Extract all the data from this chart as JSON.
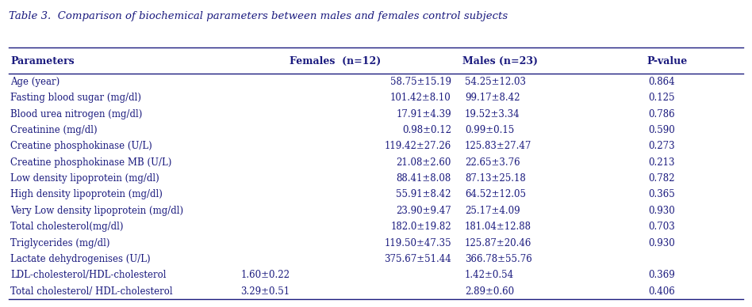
{
  "title": "Table 3.  Comparison of biochemical parameters between males and females control subjects",
  "headers": [
    "Parameters",
    "Females  (n=12)",
    "Males (n=23)",
    "P-value"
  ],
  "rows": [
    [
      "Age (year)",
      "58.75±15.19",
      "54.25±12.03",
      "0.864"
    ],
    [
      "Fasting blood sugar (mg/dl)",
      "101.42±8.10",
      "99.17±8.42",
      "0.125"
    ],
    [
      "Blood urea nitrogen (mg/dl)",
      "17.91±4.39",
      "19.52±3.34",
      "0.786"
    ],
    [
      "Creatinine (mg/dl)",
      "0.98±0.12",
      "0.99±0.15",
      "0.590"
    ],
    [
      "Creatine phosphokinase (U/L)",
      "119.42±27.26",
      "125.83±27.47",
      "0.273"
    ],
    [
      "Creatine phosphokinase MB (U/L)",
      "21.08±2.60",
      "22.65±3.76",
      "0.213"
    ],
    [
      "Low density lipoprotein (mg/dl)",
      "88.41±8.08",
      "87.13±25.18",
      "0.782"
    ],
    [
      "High density lipoprotein (mg/dl)",
      "55.91±8.42",
      "64.52±12.05",
      "0.365"
    ],
    [
      "Very Low density lipoprotein (mg/dl)",
      "23.90±9.47",
      "25.17±4.09",
      "0.930"
    ],
    [
      "Total cholesterol(mg/dl)",
      "182.0±19.82",
      "181.04±12.88",
      "0.703"
    ],
    [
      "Triglycerides (mg/dl)",
      "119.50±47.35",
      "125.87±20.46",
      "0.930"
    ],
    [
      "Lactate dehydrogenises (U/L)",
      "375.67±51.44",
      "366.78±55.76",
      ""
    ],
    [
      "LDL-cholesterol/HDL-cholesterol",
      "1.60±0.22",
      "1.42±0.54",
      "0.369"
    ],
    [
      "Total cholesterol/ HDL-cholesterol",
      "3.29±0.51",
      "2.89±0.60",
      "0.406"
    ]
  ],
  "special_rows": [
    12,
    13
  ],
  "background_color": "#ffffff",
  "text_color": "#1a1a7e",
  "font_size": 8.5,
  "header_font_size": 9.0,
  "title_font_size": 9.5,
  "fig_width": 9.48,
  "fig_height": 3.88
}
